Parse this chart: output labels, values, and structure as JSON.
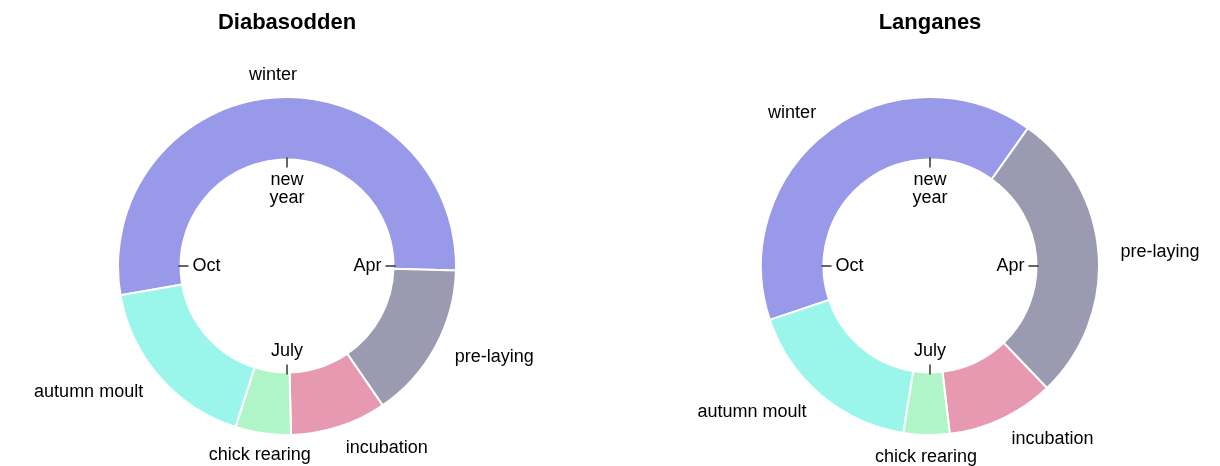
{
  "chart_data": [
    {
      "type": "donut",
      "title": "Diabasodden",
      "categories": [
        "winter",
        "pre-laying",
        "incubation",
        "chick rearing",
        "autumn moult"
      ],
      "values": [
        53.2,
        15,
        9.2,
        5.3,
        17.3
      ],
      "colors": [
        "#9999ea",
        "#9a9ab0",
        "#e699b1",
        "#aff5c8",
        "#9af5ea"
      ],
      "annotations": [
        "new year",
        "Apr",
        "July",
        "Oct"
      ],
      "legend": false
    },
    {
      "type": "donut",
      "title": "Langanes",
      "categories": [
        "winter",
        "pre-laying",
        "incubation",
        "chick rearing",
        "autumn moult"
      ],
      "values": [
        40,
        28,
        10.3,
        4.4,
        17.3
      ],
      "colors": [
        "#9999ea",
        "#9a9ab0",
        "#e699b1",
        "#aff5c8",
        "#9af5ea"
      ],
      "annotations": [
        "new year",
        "Apr",
        "July",
        "Oct"
      ],
      "legend": false
    }
  ]
}
